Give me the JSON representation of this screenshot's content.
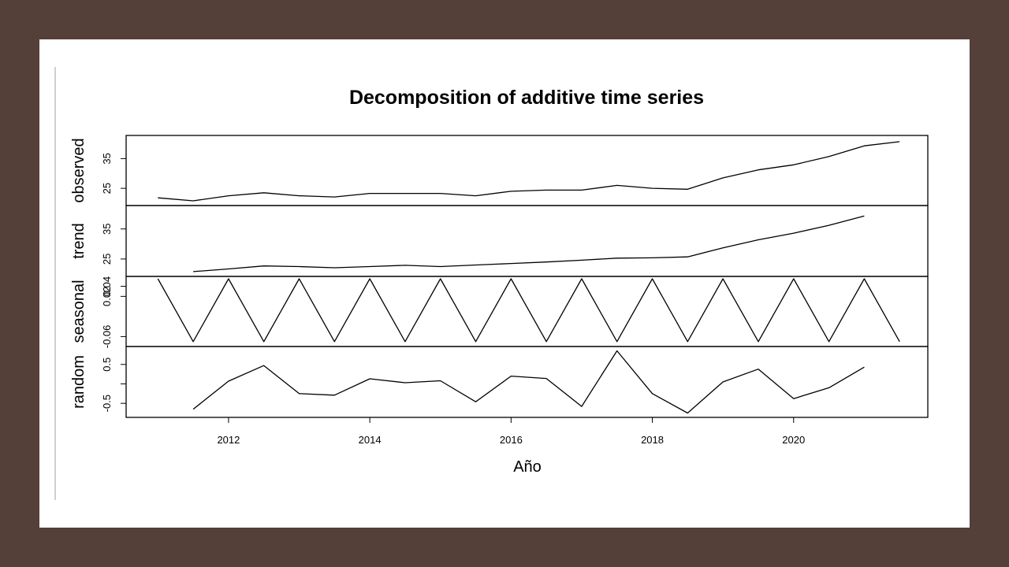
{
  "chart_data": {
    "type": "line",
    "title": "Decomposition of additive time series",
    "xlabel": "Año",
    "xlim": [
      2010.55,
      2021.9
    ],
    "xticks": [
      "2012",
      "2014",
      "2016",
      "2018",
      "2020"
    ],
    "panels": [
      {
        "name": "observed",
        "ylim": [
          20,
          42
        ],
        "yticks": [
          "25",
          "35"
        ],
        "x": [
          2011.0,
          2011.5,
          2012.0,
          2012.5,
          2013.0,
          2013.5,
          2014.0,
          2014.5,
          2015.0,
          2015.5,
          2016.0,
          2016.5,
          2017.0,
          2017.5,
          2018.0,
          2018.5,
          2019.0,
          2019.5,
          2020.0,
          2020.5,
          2021.0,
          2021.5
        ],
        "values": [
          21.8,
          20.8,
          22.5,
          23.5,
          22.5,
          22.1,
          23.3,
          23.3,
          23.3,
          22.5,
          24.0,
          24.4,
          24.4,
          26.0,
          25.0,
          24.7,
          28.5,
          31.2,
          32.9,
          35.7,
          39.3,
          40.7
        ]
      },
      {
        "name": "trend",
        "ylim": [
          20,
          42
        ],
        "yticks": [
          "25",
          "35"
        ],
        "x": [
          2011.5,
          2012.0,
          2012.5,
          2013.0,
          2013.5,
          2014.0,
          2014.5,
          2015.0,
          2015.5,
          2016.0,
          2016.5,
          2017.0,
          2017.5,
          2018.0,
          2018.5,
          2019.0,
          2019.5,
          2020.0,
          2020.5,
          2021.0
        ],
        "values": [
          20.8,
          21.7,
          22.7,
          22.5,
          22.1,
          22.5,
          22.9,
          22.5,
          23.0,
          23.5,
          24.0,
          24.6,
          25.3,
          25.4,
          25.7,
          28.7,
          31.4,
          33.6,
          36.2,
          39.3
        ]
      },
      {
        "name": "seasonal",
        "ylim": [
          -0.075,
          0.055
        ],
        "yticks": [
          "-0.06",
          "0.02",
          "0.04"
        ],
        "tick_values": [
          -0.06,
          0.02,
          0.04
        ],
        "x": [
          2011.0,
          2011.5,
          2012.0,
          2012.5,
          2013.0,
          2013.5,
          2014.0,
          2014.5,
          2015.0,
          2015.5,
          2016.0,
          2016.5,
          2017.0,
          2017.5,
          2018.0,
          2018.5,
          2019.0,
          2019.5,
          2020.0,
          2020.5,
          2021.0,
          2021.5
        ],
        "values": [
          0.055,
          -0.07,
          0.055,
          -0.07,
          0.055,
          -0.07,
          0.055,
          -0.07,
          0.055,
          -0.07,
          0.055,
          -0.07,
          0.055,
          -0.07,
          0.055,
          -0.07,
          0.055,
          -0.07,
          0.055,
          -0.07,
          0.055,
          -0.07
        ]
      },
      {
        "name": "random",
        "ylim": [
          -0.8,
          0.9
        ],
        "yticks": [
          "-0.5",
          "0.5"
        ],
        "tick_values": [
          -0.5,
          0.5
        ],
        "minor_ticks": [
          0.0
        ],
        "x": [
          2011.5,
          2012.0,
          2012.5,
          2013.0,
          2013.5,
          2014.0,
          2014.5,
          2015.0,
          2015.5,
          2016.0,
          2016.5,
          2017.0,
          2017.5,
          2018.0,
          2018.5,
          2019.0,
          2019.5,
          2020.0,
          2020.5,
          2021.0
        ],
        "values": [
          -0.65,
          0.07,
          0.47,
          -0.25,
          -0.29,
          0.13,
          0.03,
          0.08,
          -0.46,
          0.2,
          0.14,
          -0.58,
          0.85,
          -0.25,
          -0.75,
          0.05,
          0.38,
          -0.38,
          -0.1,
          0.43
        ]
      }
    ]
  }
}
